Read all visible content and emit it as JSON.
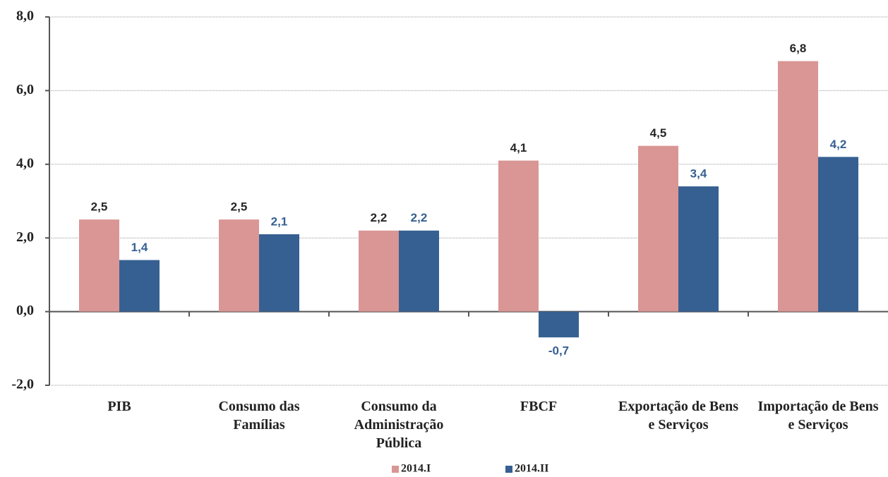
{
  "chart_data": {
    "type": "bar",
    "categories": [
      "PIB",
      "Consumo das Famílias",
      "Consumo da Administração Pública",
      "FBCF",
      "Exportação de Bens e Serviços",
      "Importação de Bens e Serviços"
    ],
    "series": [
      {
        "name": "2014.I",
        "color": "#d99694",
        "label_color": "#262626",
        "values": [
          2.5,
          2.5,
          2.2,
          4.1,
          4.5,
          6.8
        ],
        "value_labels": [
          "2,5",
          "2,5",
          "2,2",
          "4,1",
          "4,5",
          "6,8"
        ]
      },
      {
        "name": "2014.II",
        "color": "#376092",
        "label_color": "#376092",
        "values": [
          1.4,
          2.1,
          2.2,
          -0.7,
          3.4,
          4.2
        ],
        "value_labels": [
          "1,4",
          "2,1",
          "2,2",
          "-0,7",
          "3,4",
          "4,2"
        ]
      }
    ],
    "ylim": [
      -2,
      8
    ],
    "yticks": [
      {
        "value": -2,
        "label": "-2,0"
      },
      {
        "value": 0,
        "label": "0,0"
      },
      {
        "value": 2,
        "label": "2,0"
      },
      {
        "value": 4,
        "label": "4,0"
      },
      {
        "value": 6,
        "label": "6,0"
      },
      {
        "value": 8,
        "label": "8,0"
      }
    ],
    "grid": true,
    "legend": "bottom"
  }
}
